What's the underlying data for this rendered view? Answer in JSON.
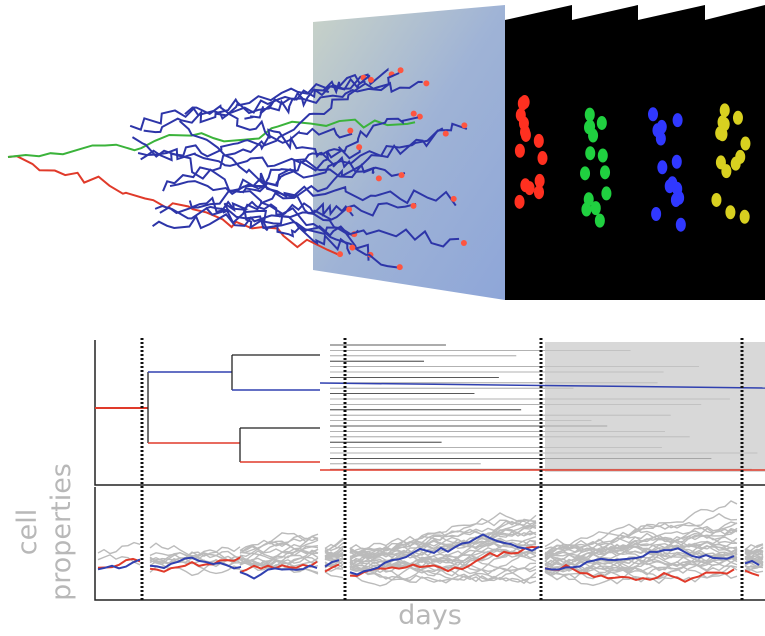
{
  "figure": {
    "y_label_lines": [
      "cell",
      "properties"
    ],
    "x_label": "days"
  }
}
